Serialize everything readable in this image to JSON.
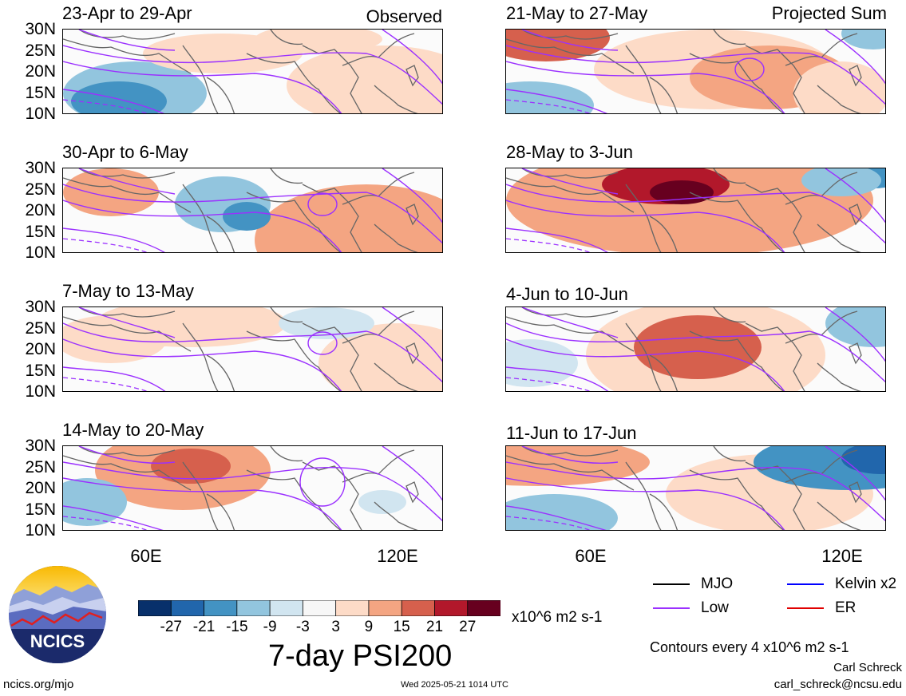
{
  "header": {
    "observed_label": "Observed",
    "projected_label": "Projected Sum"
  },
  "panels_left": [
    {
      "title": "23-Apr to 29-Apr"
    },
    {
      "title": "30-Apr to 6-May"
    },
    {
      "title": "7-May to 13-May"
    },
    {
      "title": "14-May to 20-May"
    }
  ],
  "panels_right": [
    {
      "title": "21-May to 27-May"
    },
    {
      "title": "28-May to 3-Jun"
    },
    {
      "title": "4-Jun to 10-Jun"
    },
    {
      "title": "11-Jun to 17-Jun"
    }
  ],
  "lat_ticks": [
    "30N",
    "25N",
    "20N",
    "15N",
    "10N"
  ],
  "lon_ticks": [
    "60E",
    "120E"
  ],
  "colorbar": {
    "ticks": [
      "-27",
      "-21",
      "-15",
      "-9",
      "-3",
      "3",
      "9",
      "15",
      "21",
      "27"
    ],
    "colors": [
      "#08306b",
      "#2166ac",
      "#4393c3",
      "#92c5de",
      "#d1e5f0",
      "#f7f7f7",
      "#fddbc7",
      "#f4a582",
      "#d6604d",
      "#b2182b",
      "#67001f"
    ],
    "units": "x10^6 m2 s-1",
    "title": "7-day PSI200"
  },
  "legend": {
    "items": [
      {
        "label": "MJO",
        "color": "#000000"
      },
      {
        "label": "Kelvin x2",
        "color": "#0000ff"
      },
      {
        "label": "Low",
        "color": "#9b30ff"
      },
      {
        "label": "ER",
        "color": "#e00000"
      }
    ],
    "contour_note": "Contours every 4 x10^6 m2 s-1"
  },
  "footer": {
    "site": "ncics.org/mjo",
    "timestamp": "Wed 2025-05-21 1014 UTC",
    "author": "Carl Schreck",
    "email": "carl_schreck@ncsu.edu",
    "logo_text": "NCICS"
  }
}
